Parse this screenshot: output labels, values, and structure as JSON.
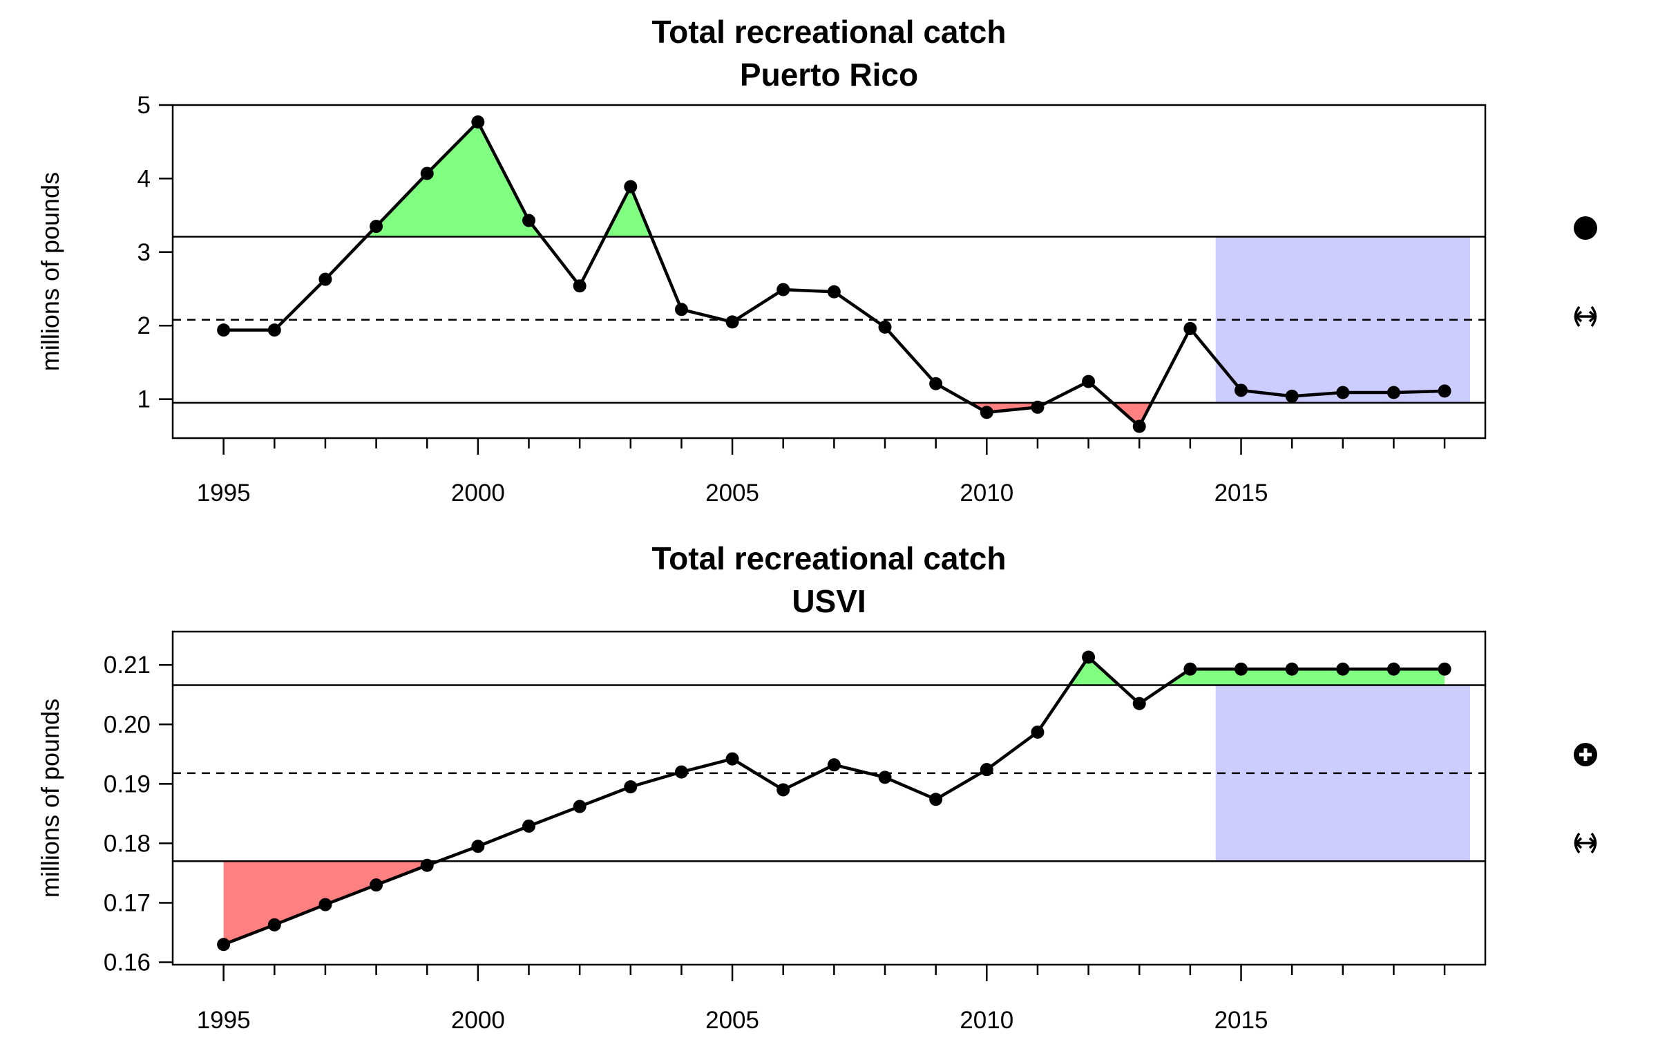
{
  "chart_data": [
    {
      "type": "line",
      "title": "Total recreational catch",
      "subtitle": "Puerto Rico",
      "ylabel": "millions of pounds",
      "xlim": [
        1994,
        2019.8
      ],
      "ylim": [
        0.47,
        5.0
      ],
      "xticks": [
        1995,
        2000,
        2005,
        2010,
        2015
      ],
      "xtick_labels": [
        "1995",
        "2000",
        "2005",
        "2010",
        "2015"
      ],
      "yticks": [
        1,
        2,
        3,
        4,
        5
      ],
      "ytick_labels": [
        "1",
        "2",
        "3",
        "4",
        "5"
      ],
      "x": [
        1995,
        1996,
        1997,
        1998,
        1999,
        2000,
        2001,
        2002,
        2003,
        2004,
        2005,
        2006,
        2007,
        2008,
        2009,
        2010,
        2011,
        2012,
        2013,
        2014,
        2015,
        2016,
        2017,
        2018,
        2019
      ],
      "values": [
        1.94,
        1.94,
        2.63,
        3.35,
        4.07,
        4.77,
        3.43,
        2.54,
        3.89,
        2.22,
        2.05,
        2.49,
        2.46,
        1.98,
        1.21,
        0.82,
        0.89,
        1.24,
        0.63,
        1.96,
        1.12,
        1.04,
        1.09,
        1.09,
        1.11
      ],
      "mean": 2.08,
      "upper_threshold": 3.21,
      "lower_threshold": 0.95,
      "recent_window": [
        2014.5,
        2019.5
      ],
      "trend_symbols": [
        "filled-circle",
        "left-right-arrow"
      ],
      "colors": {
        "above": "#80ff80",
        "below": "#ff8080",
        "window": "#ccccff",
        "line": "#000000"
      }
    },
    {
      "type": "line",
      "title": "Total recreational catch",
      "subtitle": "USVI",
      "ylabel": "millions of pounds",
      "xlim": [
        1994,
        2019.8
      ],
      "ylim": [
        0.1596,
        0.2156
      ],
      "xticks": [
        1995,
        2000,
        2005,
        2010,
        2015
      ],
      "xtick_labels": [
        "1995",
        "2000",
        "2005",
        "2010",
        "2015"
      ],
      "yticks": [
        0.16,
        0.17,
        0.18,
        0.19,
        0.2,
        0.21
      ],
      "ytick_labels": [
        "0.16",
        "0.17",
        "0.18",
        "0.19",
        "0.20",
        "0.21"
      ],
      "x": [
        1995,
        1996,
        1997,
        1998,
        1999,
        2000,
        2001,
        2002,
        2003,
        2004,
        2005,
        2006,
        2007,
        2008,
        2009,
        2010,
        2011,
        2012,
        2013,
        2014,
        2015,
        2016,
        2017,
        2018,
        2019
      ],
      "values": [
        0.163,
        0.1663,
        0.1697,
        0.173,
        0.1763,
        0.1795,
        0.1829,
        0.1862,
        0.1895,
        0.192,
        0.1942,
        0.189,
        0.1932,
        0.1911,
        0.1874,
        0.1924,
        0.1987,
        0.2113,
        0.2035,
        0.2093,
        0.2093,
        0.2093,
        0.2093,
        0.2093,
        0.2093
      ],
      "mean": 0.1918,
      "upper_threshold": 0.2066,
      "lower_threshold": 0.177,
      "recent_window": [
        2014.5,
        2019.5
      ],
      "trend_symbols": [
        "circle-plus",
        "left-right-arrow"
      ],
      "colors": {
        "above": "#80ff80",
        "below": "#ff8080",
        "window": "#ccccff",
        "line": "#000000"
      }
    }
  ]
}
